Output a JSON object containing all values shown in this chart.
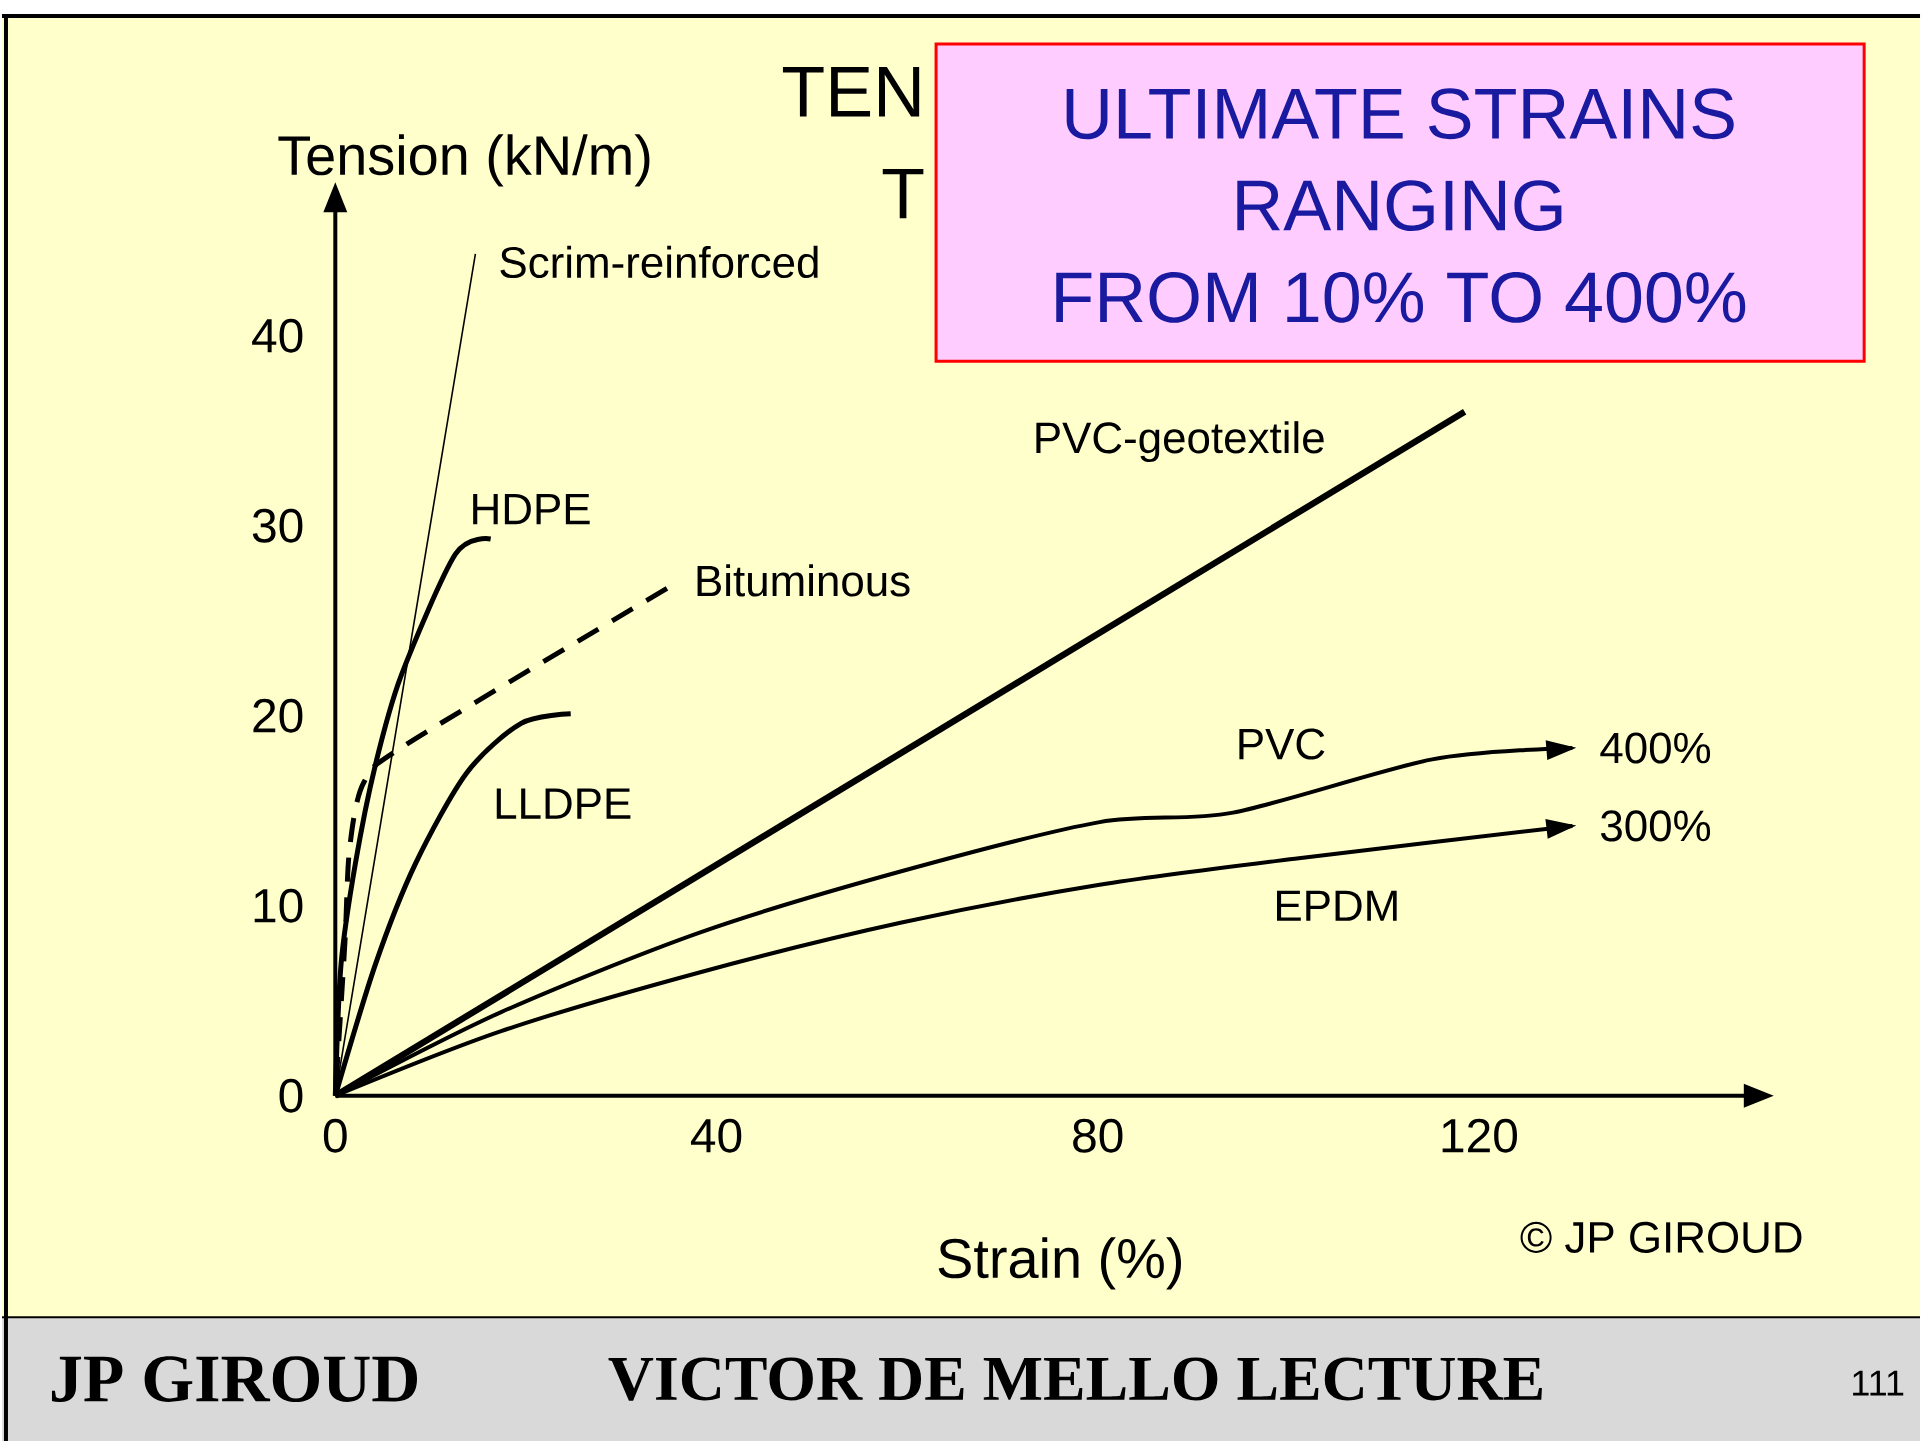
{
  "chart_data": {
    "type": "line",
    "title": "TEN",
    "subtitle": "T",
    "xlabel": "Strain (%)",
    "ylabel": "Tension (kN/m)",
    "xlim": [
      0,
      148
    ],
    "ylim": [
      0,
      46.6
    ],
    "xticks": [
      0,
      40,
      80,
      120
    ],
    "yticks": [
      0,
      10,
      20,
      30,
      40
    ],
    "series": [
      {
        "name": "Scrim-reinforced",
        "color": "#000000",
        "x": [
          0,
          14.7
        ],
        "values": [
          0,
          44.3
        ]
      },
      {
        "name": "HDPE",
        "color": "#000000",
        "x": [
          0,
          0.6,
          2.1,
          4.2,
          6.9,
          12.6,
          16.3
        ],
        "values": [
          0,
          6.9,
          12.2,
          17.4,
          22.1,
          28.5,
          29.3
        ]
      },
      {
        "name": "Bituminous",
        "color": "#000000",
        "line_style": "dashed",
        "x": [
          0,
          1,
          1.5,
          3,
          7.5,
          34.8
        ],
        "values": [
          0,
          8,
          13,
          16.5,
          18.5,
          26.7
        ]
      },
      {
        "name": "LLDPE",
        "color": "#000000",
        "x": [
          0,
          4.2,
          8.4,
          13.8,
          19.5,
          24.7
        ],
        "values": [
          0,
          6.9,
          12.2,
          17,
          19.6,
          20.1
        ]
      },
      {
        "name": "PVC-geotextile",
        "color": "#000000",
        "x": [
          0,
          118.5
        ],
        "values": [
          0,
          36
        ]
      },
      {
        "name": "PVC",
        "color": "#000000",
        "x": [
          0,
          17.4,
          38.3,
          59.3,
          80.2,
          94.2,
          115.1,
          129.8
        ],
        "values": [
          0,
          4.4,
          8.6,
          11.8,
          14.4,
          14.9,
          17.7,
          18.3
        ]
      },
      {
        "name": "EPDM",
        "color": "#000000",
        "x": [
          0,
          17.4,
          38.3,
          59.3,
          80.2,
          101.1,
          129.8
        ],
        "values": [
          0,
          3.4,
          6.5,
          9.1,
          11.1,
          12.5,
          14.2
        ]
      }
    ],
    "annotations": [
      "ULTIMATE STRAINS",
      "RANGING",
      "FROM 10% TO 400%",
      {
        "text": "400%",
        "x": 129.8,
        "y": 18.3
      },
      {
        "text": "300%",
        "x": 129.8,
        "y": 14.2
      },
      "© JP GIROUD",
      "JP GIROUD",
      "VICTOR DE MELLO LECTURE",
      "111"
    ]
  }
}
